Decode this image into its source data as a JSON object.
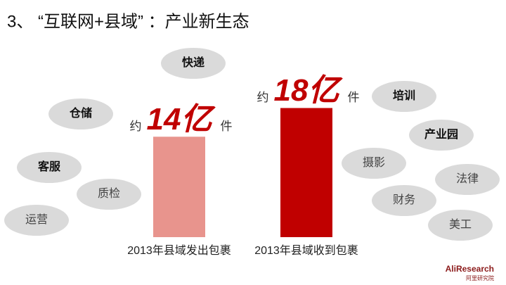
{
  "chart_data": {
    "type": "bar",
    "title": "3、 “互联网+县域” ：产业新生态",
    "categories": [
      "2013年县域发出包裹",
      "2013年县域收到包裹"
    ],
    "values": [
      14,
      18
    ],
    "value_labels": [
      "14亿",
      "18亿"
    ],
    "label_prefix": "约",
    "label_suffix": "件",
    "colors": [
      "#e8948d",
      "#c00000"
    ],
    "ylim": [
      0,
      33
    ],
    "annotations": [
      "快递",
      "仓储",
      "客服",
      "质检",
      "运营",
      "培训",
      "产业园",
      "摄影",
      "法律",
      "财务",
      "美工"
    ]
  },
  "logo": {
    "text": "AliResearch",
    "subtext": "阿里研究院"
  }
}
